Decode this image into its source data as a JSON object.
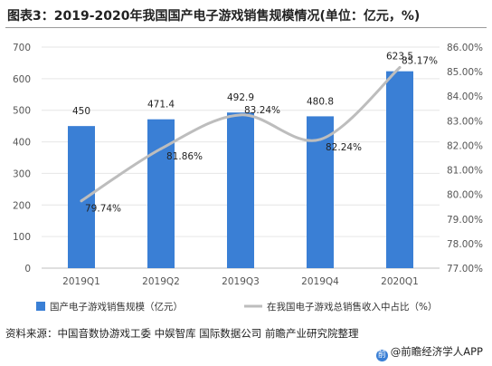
{
  "title": "图表3：2019-2020年我国国产电子游戏销售规模情况(单位：亿元，%)",
  "source_text": "资料来源：中国音数协游戏工委 中娱智库 国际数据公司 前瞻产业研究院整理",
  "brand_text": "@前瞻经济学人APP",
  "colors": {
    "bar": "#3a7fd5",
    "line": "#bdbdbd",
    "grid": "#e6e6e6",
    "text": "#555555"
  },
  "chart_data": {
    "type": "bar",
    "categories": [
      "2019Q1",
      "2019Q2",
      "2019Q3",
      "2019Q4",
      "2020Q1"
    ],
    "y_left": {
      "min": 0,
      "max": 700,
      "ticks": [
        "0",
        "100",
        "200",
        "300",
        "400",
        "500",
        "600",
        "700"
      ]
    },
    "y_right": {
      "min": 77,
      "max": 86,
      "ticks": [
        "77.00%",
        "78.00%",
        "79.00%",
        "80.00%",
        "81.00%",
        "82.00%",
        "83.00%",
        "84.00%",
        "85.00%",
        "86.00%"
      ]
    },
    "series": [
      {
        "name": "国产电子游戏销售规模（亿元）",
        "type": "bar",
        "axis": "left",
        "values": [
          450,
          471.4,
          492.9,
          480.8,
          623.5
        ],
        "labels": [
          "450",
          "471.4",
          "492.9",
          "480.8",
          "623.5"
        ]
      },
      {
        "name": "在我国电子游戏总销售收入中占比（%）",
        "type": "line",
        "axis": "right",
        "values": [
          79.74,
          81.86,
          83.24,
          82.24,
          85.17
        ],
        "labels": [
          "79.74%",
          "81.86%",
          "83.24%",
          "82.24%",
          "85.17%"
        ]
      }
    ],
    "legend_position": "bottom",
    "grid": true
  }
}
